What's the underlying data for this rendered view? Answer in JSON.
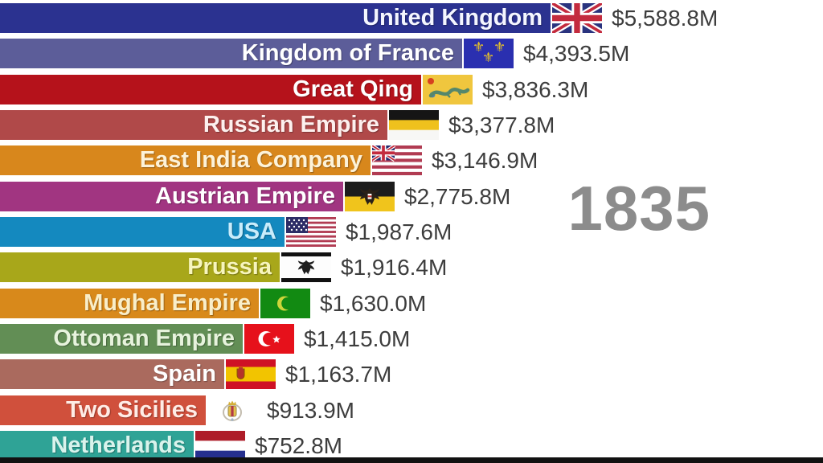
{
  "chart_data": {
    "type": "bar",
    "orientation": "horizontal",
    "title": "",
    "xlabel": "",
    "ylabel": "",
    "year_label": "1835",
    "value_prefix": "$",
    "value_suffix": "M",
    "axis_visible": false,
    "grid": false,
    "legend": "none",
    "background_color": "#ffffff",
    "year_label_color": "#8c8c8c",
    "value_text_color": "#3d3d3d",
    "items": [
      {
        "rank": 1,
        "label": "United Kingdom",
        "value": 5588.8,
        "display_value": "$5,588.8M",
        "bar_color": "#2b3290",
        "label_color": "#f4f6ff",
        "flag": "united-kingdom-flag"
      },
      {
        "rank": 2,
        "label": "Kingdom of France",
        "value": 4393.5,
        "display_value": "$4,393.5M",
        "bar_color": "#5c5d99",
        "label_color": "#ffffff",
        "flag": "kingdom-of-france-flag"
      },
      {
        "rank": 3,
        "label": "Great Qing",
        "value": 3836.3,
        "display_value": "$3,836.3M",
        "bar_color": "#b5121b",
        "label_color": "#ffffff",
        "flag": "great-qing-flag"
      },
      {
        "rank": 4,
        "label": "Russian Empire",
        "value": 3377.8,
        "display_value": "$3,377.8M",
        "bar_color": "#b04949",
        "label_color": "#fdf0ee",
        "flag": "russian-empire-flag"
      },
      {
        "rank": 5,
        "label": "East India Company",
        "value": 3146.9,
        "display_value": "$3,146.9M",
        "bar_color": "#d8871c",
        "label_color": "#fdf2d8",
        "flag": "east-india-company-flag"
      },
      {
        "rank": 6,
        "label": "Austrian Empire",
        "value": 2775.8,
        "display_value": "$2,775.8M",
        "bar_color": "#a13581",
        "label_color": "#ffffff",
        "flag": "austrian-empire-flag"
      },
      {
        "rank": 7,
        "label": "USA",
        "value": 1987.6,
        "display_value": "$1,987.6M",
        "bar_color": "#1489bf",
        "label_color": "#c9ecfb",
        "flag": "usa-flag"
      },
      {
        "rank": 8,
        "label": "Prussia",
        "value": 1916.4,
        "display_value": "$1,916.4M",
        "bar_color": "#a8a71a",
        "label_color": "#f7f5bd",
        "flag": "prussia-flag"
      },
      {
        "rank": 9,
        "label": "Mughal Empire",
        "value": 1630.0,
        "display_value": "$1,630.0M",
        "bar_color": "#d8891b",
        "label_color": "#f9eec9",
        "flag": "mughal-empire-flag"
      },
      {
        "rank": 10,
        "label": "Ottoman Empire",
        "value": 1415.0,
        "display_value": "$1,415.0M",
        "bar_color": "#628e55",
        "label_color": "#e7f3dd",
        "flag": "ottoman-empire-flag"
      },
      {
        "rank": 11,
        "label": "Spain",
        "value": 1163.7,
        "display_value": "$1,163.7M",
        "bar_color": "#aa6a5e",
        "label_color": "#ffffff",
        "flag": "spain-flag"
      },
      {
        "rank": 12,
        "label": "Two Sicilies",
        "value": 913.9,
        "display_value": "$913.9M",
        "bar_color": "#d0503c",
        "label_color": "#ffece6",
        "flag": "two-sicilies-flag"
      },
      {
        "rank": 13,
        "label": "Netherlands",
        "value": 752.8,
        "display_value": "$752.8M",
        "bar_color": "#2fa396",
        "label_color": "#d9f3ec",
        "flag": "netherlands-flag"
      }
    ]
  }
}
